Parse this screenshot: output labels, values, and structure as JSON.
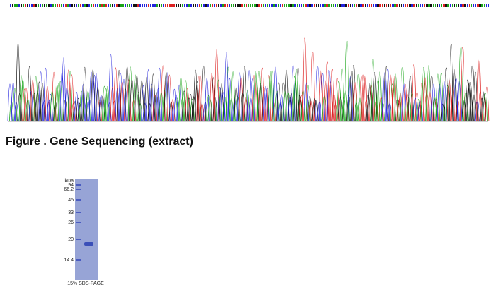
{
  "sequencing": {
    "caption": "Figure . Gene Sequencing (extract)"
  },
  "gel": {
    "unit": "kDa",
    "markers": [
      "94",
      "66.2",
      "45",
      "33",
      "26",
      "20",
      "14.4"
    ],
    "caption": "15% SDS-PAGE"
  }
}
